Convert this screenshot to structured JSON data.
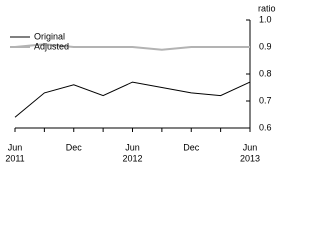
{
  "chart_data": {
    "type": "line",
    "y_label": "ratio",
    "categories": [
      "Jun",
      null,
      "Dec",
      null,
      "Jun",
      null,
      "Dec",
      null,
      "Jun"
    ],
    "year_labels": [
      "2011",
      null,
      null,
      null,
      "2012",
      null,
      null,
      null,
      "2013"
    ],
    "series": [
      {
        "name": "Original",
        "color": "#000000",
        "values": [
          0.64,
          0.73,
          0.76,
          0.72,
          0.77,
          0.75,
          0.73,
          0.72,
          0.77
        ]
      },
      {
        "name": "Adjusted",
        "color": "#b3b3b3",
        "values": [
          0.9,
          0.91,
          0.9,
          0.9,
          0.9,
          0.89,
          0.9,
          0.9,
          0.9
        ]
      }
    ],
    "ylim": [
      0.6,
      1.0
    ],
    "yticks": [
      0.6,
      0.7,
      0.8,
      0.9,
      {
        "value": 1.0,
        "label": "1.0"
      }
    ],
    "legend": "upper left"
  }
}
